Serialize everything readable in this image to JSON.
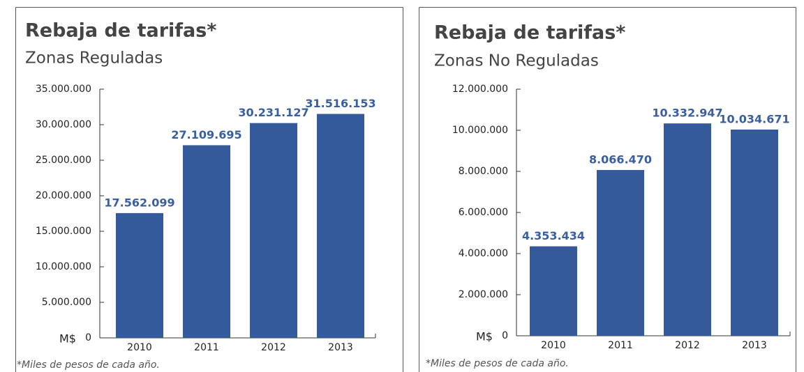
{
  "chart_data": [
    {
      "type": "bar",
      "title": "Rebaja de tarifas*",
      "subtitle": "Zonas Reguladas",
      "y_unit": "M$",
      "footnote": "*Miles de pesos de cada año.",
      "categories": [
        "2010",
        "2011",
        "2012",
        "2013"
      ],
      "values": [
        17562099,
        27109695,
        30231127,
        31516153
      ],
      "value_labels": [
        "17.562.099",
        "27.109.695",
        "30.231.127",
        "31.516.153"
      ],
      "color": "#345a9c",
      "ylim": [
        0,
        35000000
      ],
      "yticks": [
        0,
        {
          "value": 5000000,
          "label": "5.000.000"
        },
        {
          "value": 10000000,
          "label": "10.000.000"
        },
        {
          "value": 15000000,
          "label": "15.000.000"
        },
        {
          "value": 20000000,
          "label": "20.000.000"
        },
        {
          "value": 25000000,
          "label": "25.000.000"
        },
        {
          "value": 30000000,
          "label": "30.000.000"
        },
        {
          "value": 35000000,
          "label": "35.000.000"
        }
      ]
    },
    {
      "type": "bar",
      "title": "Rebaja de tarifas*",
      "subtitle": "Zonas No Reguladas",
      "y_unit": "M$",
      "footnote": "*Miles de pesos de cada año.",
      "categories": [
        "2010",
        "2011",
        "2012",
        "2013"
      ],
      "values": [
        4353434,
        8066470,
        10332947,
        10034671
      ],
      "value_labels": [
        "4.353.434",
        "8.066.470",
        "10.332.947",
        "10.034.671"
      ],
      "color": "#345a9c",
      "ylim": [
        0,
        12000000
      ],
      "yticks": [
        0,
        {
          "value": 2000000,
          "label": "2.000.000"
        },
        {
          "value": 4000000,
          "label": "4.000.000"
        },
        {
          "value": 6000000,
          "label": "6.000.000"
        },
        {
          "value": 8000000,
          "label": "8.000.000"
        },
        {
          "value": 10000000,
          "label": "10.000.000"
        },
        {
          "value": 12000000,
          "label": "12.000.000"
        }
      ]
    }
  ]
}
